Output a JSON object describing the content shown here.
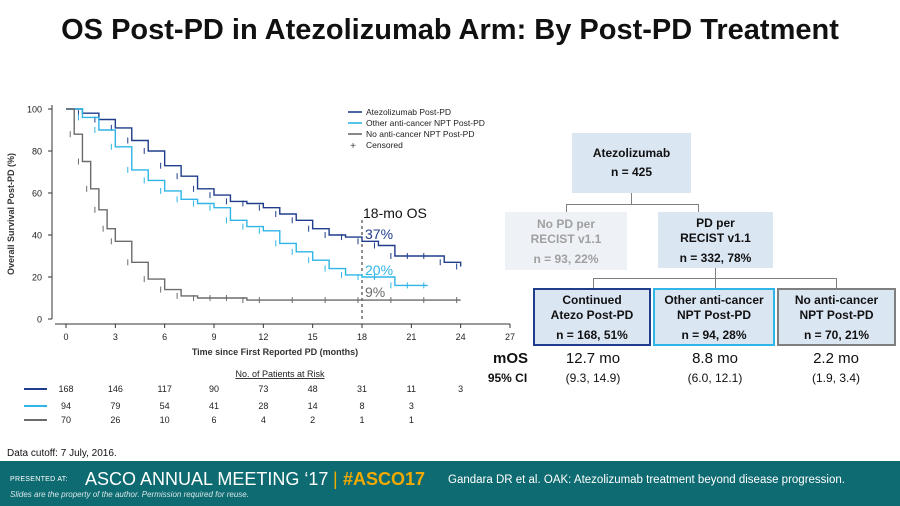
{
  "slide": {
    "title": "OS Post-PD in Atezolizumab Arm: By Post-PD Treatment",
    "data_cutoff": "Data cutoff: 7 July, 2016.",
    "os_label": "18-mo OS",
    "risk_title": "No. of Patients at Risk"
  },
  "chart_data": {
    "type": "line",
    "title": "",
    "xlabel": "Time since First Reported PD (months)",
    "ylabel": "Overall Survival Post-PD (%)",
    "xlim": [
      0,
      27
    ],
    "ylim": [
      0,
      100
    ],
    "x_ticks": [
      0,
      3,
      6,
      9,
      12,
      15,
      18,
      21,
      24,
      27
    ],
    "y_ticks": [
      0,
      20,
      40,
      60,
      80,
      100
    ],
    "legend_position": "top-right",
    "legend_censored": "Censored",
    "grid": false,
    "series": [
      {
        "name": "Atezolizumab Post-PD",
        "color": "#1f3d8a",
        "landmark_label": "37%",
        "x": [
          0,
          1,
          2,
          3,
          4,
          5,
          6,
          7,
          8,
          9,
          10,
          11,
          12,
          13,
          14,
          15,
          16,
          17,
          18,
          19,
          20,
          21,
          22,
          23,
          24
        ],
        "y": [
          100,
          98,
          95,
          91,
          85,
          80,
          73,
          68,
          62,
          59,
          56,
          55,
          53,
          50,
          47,
          43,
          40,
          39,
          37,
          35,
          30,
          30,
          30,
          27,
          25
        ]
      },
      {
        "name": "Other anti-cancer NPT Post-PD",
        "color": "#2fb5e8",
        "landmark_label": "20%",
        "x": [
          0,
          1,
          2,
          3,
          4,
          5,
          6,
          7,
          8,
          9,
          10,
          11,
          12,
          13,
          14,
          15,
          16,
          17,
          18,
          19,
          20,
          21,
          22
        ],
        "y": [
          100,
          96,
          90,
          82,
          71,
          66,
          61,
          57,
          55,
          53,
          47,
          44,
          42,
          36,
          32,
          28,
          24,
          21,
          20,
          20,
          16,
          16,
          16
        ]
      },
      {
        "name": "No anti-cancer NPT Post-PD",
        "color": "#6b6b6b",
        "landmark_label": "9%",
        "x": [
          0,
          0.5,
          1,
          1.5,
          2,
          2.5,
          3,
          4,
          5,
          6,
          7,
          8,
          9,
          10,
          11,
          12,
          14,
          16,
          18,
          20,
          22,
          24
        ],
        "y": [
          100,
          88,
          75,
          62,
          52,
          43,
          37,
          27,
          19,
          14,
          11,
          10,
          10,
          10,
          9,
          9,
          9,
          9,
          9,
          9,
          9,
          9
        ]
      }
    ],
    "at_risk": {
      "times": [
        0,
        3,
        6,
        9,
        12,
        15,
        18,
        21,
        24
      ],
      "rows": [
        [
          "168",
          "146",
          "117",
          "90",
          "73",
          "48",
          "31",
          "11",
          "3"
        ],
        [
          "94",
          "79",
          "54",
          "41",
          "28",
          "14",
          "8",
          "3",
          ""
        ],
        [
          "70",
          "26",
          "10",
          "6",
          "4",
          "2",
          "1",
          "1",
          ""
        ]
      ]
    }
  },
  "flow": {
    "top": {
      "name": "Atezolizumab",
      "n": "n = 425"
    },
    "no_pd": {
      "line1": "No PD per",
      "line2": "RECIST v1.1",
      "n": "n = 93, 22%"
    },
    "pd": {
      "line1": "PD per",
      "line2": "RECIST v1.1",
      "n": "n = 332, 78%"
    },
    "groups": [
      {
        "line1": "Continued",
        "line2": "Atezo Post-PD",
        "n": "n = 168, 51%",
        "mos": "12.7 mo",
        "ci": "(9.3, 14.9)"
      },
      {
        "line1": "Other anti-cancer",
        "line2": "NPT Post-PD",
        "n": "n = 94, 28%",
        "mos": "8.8 mo",
        "ci": "(6.0, 12.1)"
      },
      {
        "line1": "No anti-cancer",
        "line2": "NPT Post-PD",
        "n": "n = 70, 21%",
        "mos": "2.2 mo",
        "ci": "(1.9, 3.4)"
      }
    ],
    "mos_label": "mOS",
    "ci_label": "95% CI"
  },
  "footer": {
    "presented_at": "PRESENTED AT:",
    "meeting": "ASCO ANNUAL MEETING ‘17",
    "separator": "|",
    "hashtag": "#ASCO17",
    "citation": "Gandara DR et al. OAK: Atezolizumab treatment beyond disease progression.",
    "slides_note": "Slides are the property of the author. Permission required for reuse."
  },
  "colors": {
    "atezo": "#1f3d8a",
    "other": "#2fb5e8",
    "none": "#6b6b6b",
    "footer_bg": "#0f6b72",
    "accent": "#f2a900",
    "box_fill": "#dbe6f3"
  }
}
